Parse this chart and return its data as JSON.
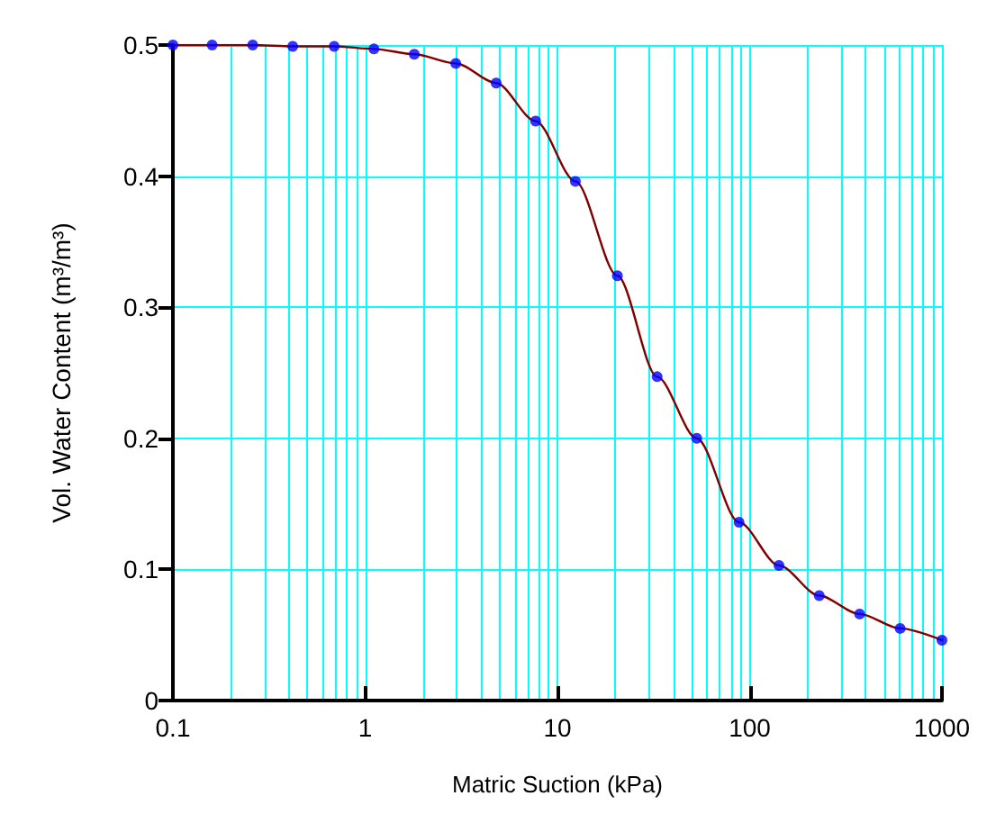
{
  "chart_data": {
    "type": "scatter",
    "xlabel": "Matric Suction (kPa)",
    "ylabel": "Vol. Water Content (m³/m³)",
    "log": "x",
    "xlim": [
      0.1,
      1000
    ],
    "xticks": [
      0.1,
      1,
      10,
      100,
      1000
    ],
    "ylim": [
      0,
      0.5
    ],
    "yticks": [
      0,
      0.1,
      0.2,
      0.3,
      0.4,
      0.5
    ],
    "grid": true,
    "series": [
      {
        "type": "line",
        "color": "#800000",
        "marker": "none",
        "line_style": "solid",
        "x": [
          0.1,
          0.16,
          0.26,
          0.42,
          0.69,
          1.11,
          1.8,
          2.96,
          4.8,
          7.7,
          12.4,
          20.5,
          33,
          53,
          88,
          142,
          230,
          373,
          606,
          1000
        ],
        "values": [
          0.5,
          0.5,
          0.5,
          0.499,
          0.499,
          0.497,
          0.493,
          0.486,
          0.471,
          0.442,
          0.396,
          0.324,
          0.247,
          0.2,
          0.136,
          0.103,
          0.08,
          0.066,
          0.055,
          0.046
        ]
      },
      {
        "color": "#0000ff",
        "marker": "circle",
        "x": [
          0.1,
          0.16,
          0.26,
          0.42,
          0.69,
          1.11,
          1.8,
          2.96,
          4.8,
          7.7,
          12.4,
          20.5,
          33,
          53,
          88,
          142,
          230,
          373,
          606,
          1000
        ],
        "values": [
          0.5,
          0.5,
          0.5,
          0.499,
          0.499,
          0.497,
          0.493,
          0.486,
          0.471,
          0.442,
          0.396,
          0.324,
          0.247,
          0.2,
          0.136,
          0.103,
          0.08,
          0.066,
          0.055,
          0.046
        ]
      }
    ]
  }
}
